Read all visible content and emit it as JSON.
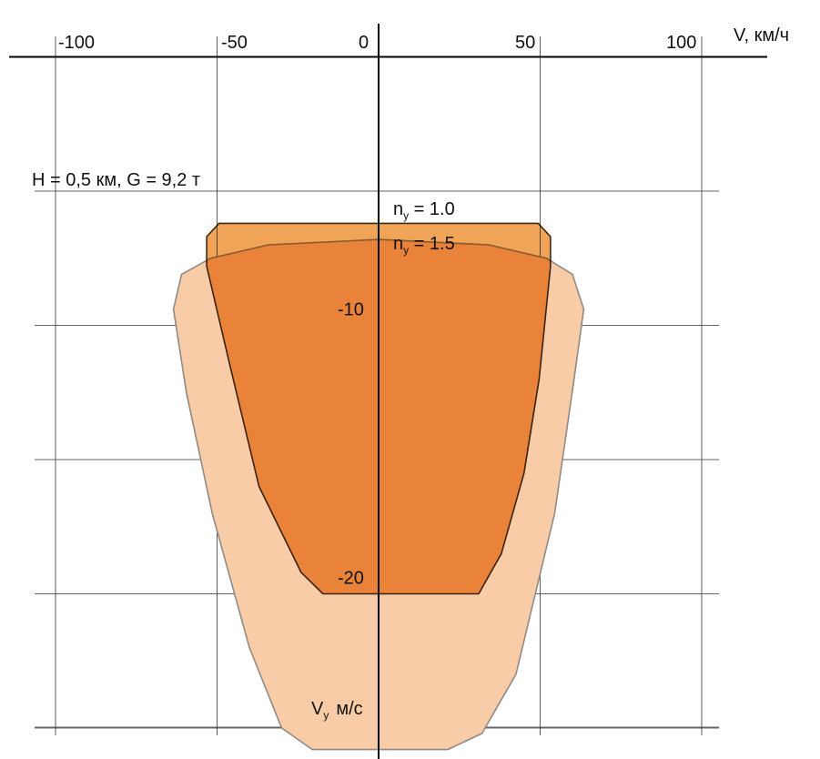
{
  "chart_data": {
    "type": "area",
    "annotation": "H = 0,5 км, G = 9,2 т",
    "x_axis": {
      "label": "V, км/ч",
      "range": [
        -117,
        105
      ],
      "ticks": [
        {
          "value": -100,
          "label": "-100"
        },
        {
          "value": -50,
          "label": "-50"
        },
        {
          "value": 0,
          "label": "0"
        },
        {
          "value": 50,
          "label": "50"
        },
        {
          "value": 100,
          "label": "100"
        }
      ]
    },
    "y_axis": {
      "label": "Vy м/с",
      "label_main": "V",
      "label_sub": "y",
      "label_unit": "м/с",
      "range": [
        -30.1,
        2.0
      ],
      "ticks": [
        {
          "value": -10,
          "label": "-10"
        },
        {
          "value": -20,
          "label": "-20"
        }
      ],
      "gridlines": [
        -5,
        -10,
        -15,
        -20,
        -25
      ]
    },
    "grid": true,
    "series": [
      {
        "name": "ny = 1.0",
        "label_main": "n",
        "label_sub": "y",
        "label_value": " = 1.0",
        "color": "#ee9a45",
        "stroke": "#3c2a14",
        "points": [
          [
            -53.2,
            -6.7
          ],
          [
            -49.4,
            -6.2
          ],
          [
            49.4,
            -6.2
          ],
          [
            53.2,
            -6.7
          ],
          [
            53.2,
            -7.8
          ],
          [
            49.7,
            -12.0
          ],
          [
            45.0,
            -15.5
          ],
          [
            38.0,
            -18.5
          ],
          [
            31.0,
            -20.0
          ],
          [
            17.4,
            -20.0
          ],
          [
            -17.2,
            -20.0
          ],
          [
            -24.0,
            -19.2
          ],
          [
            -37.0,
            -16.0
          ],
          [
            -46.0,
            -11.5
          ],
          [
            -53.2,
            -7.8
          ]
        ]
      },
      {
        "name": "ny = 1.5",
        "label_main": "n",
        "label_sub": "y",
        "label_value": " = 1.5",
        "color": "#f8cca6",
        "stroke": "#8f8a85",
        "points": [
          [
            -63.5,
            -9.4
          ],
          [
            -61.0,
            -8.1
          ],
          [
            -52.0,
            -7.5
          ],
          [
            -34.0,
            -7.0
          ],
          [
            0.0,
            -6.8
          ],
          [
            34.0,
            -7.0
          ],
          [
            52.0,
            -7.5
          ],
          [
            60.0,
            -8.1
          ],
          [
            63.5,
            -9.4
          ],
          [
            60.5,
            -12.0
          ],
          [
            54.5,
            -17.0
          ],
          [
            42.5,
            -23.0
          ],
          [
            32.0,
            -25.2
          ],
          [
            21.4,
            -25.8
          ],
          [
            -20.5,
            -25.8
          ],
          [
            -30.0,
            -25.0
          ],
          [
            -40.0,
            -22.0
          ],
          [
            -51.5,
            -17.0
          ],
          [
            -59.5,
            -12.5
          ]
        ]
      }
    ]
  }
}
